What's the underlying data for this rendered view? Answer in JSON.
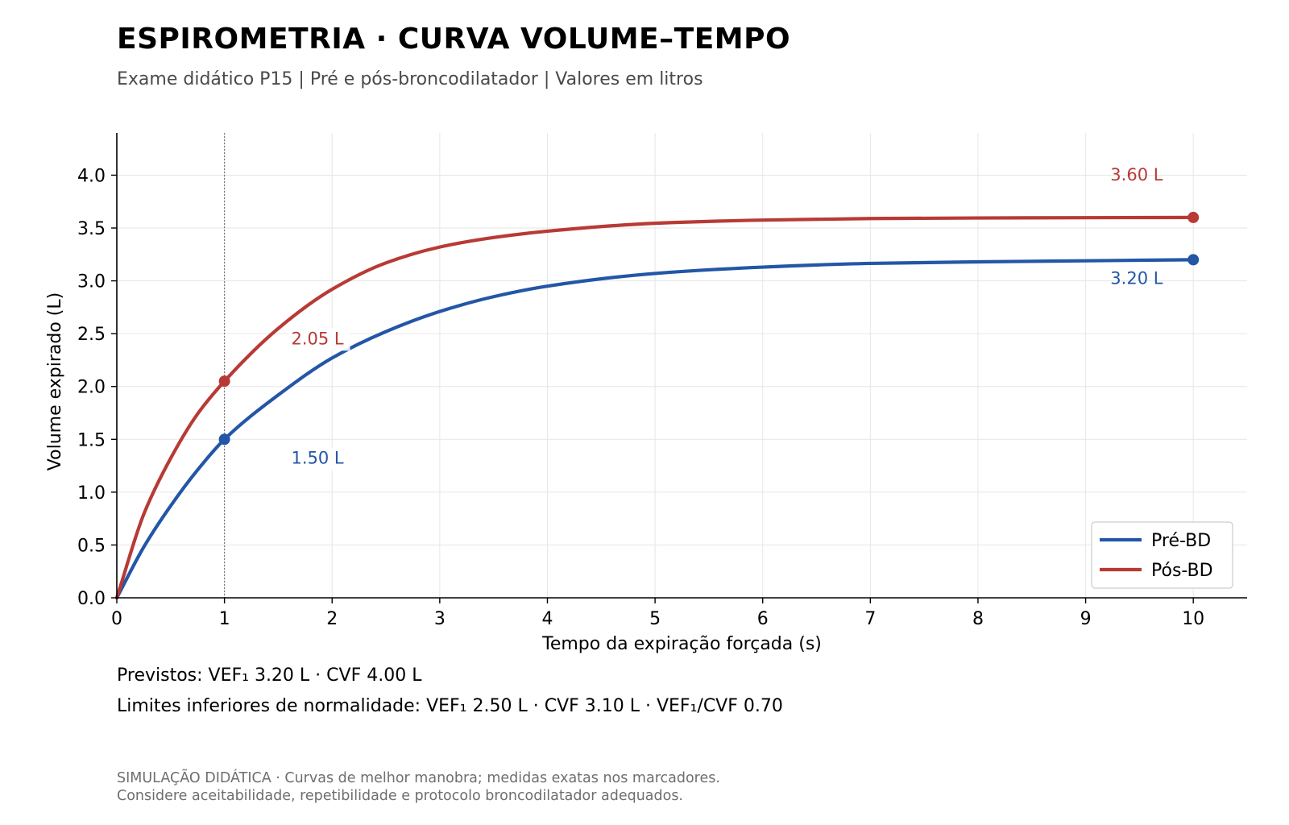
{
  "header": {
    "title": "ESPIROMETRIA · CURVA VOLUME–TEMPO",
    "subtitle": "Exame didático P15  |  Pré e pós-broncodilatador  |  Valores em litros"
  },
  "chart_data": {
    "type": "line",
    "xlabel": "Tempo da expiração forçada (s)",
    "ylabel": "Volume expirado (L)",
    "xlim": [
      0,
      10.5
    ],
    "ylim": [
      0,
      4.4
    ],
    "x_ticks": [
      0,
      1,
      2,
      3,
      4,
      5,
      6,
      7,
      8,
      9,
      10
    ],
    "y_ticks": [
      0.0,
      0.5,
      1.0,
      1.5,
      2.0,
      2.5,
      3.0,
      3.5,
      4.0
    ],
    "y_tick_labels": [
      "0.0",
      "0.5",
      "1.0",
      "1.5",
      "2.0",
      "2.5",
      "3.0",
      "3.5",
      "4.0"
    ],
    "grid": true,
    "legend_position": "lower-right",
    "reference_line_x": 1,
    "x": [
      0,
      0.25,
      0.5,
      0.75,
      1,
      1.5,
      2,
      2.5,
      3,
      3.5,
      4,
      5,
      6,
      7,
      8,
      9,
      10
    ],
    "series": [
      {
        "name": "Pré-BD",
        "color": "#2356a6",
        "values": [
          0.0,
          0.48,
          0.87,
          1.21,
          1.5,
          1.92,
          2.27,
          2.52,
          2.71,
          2.85,
          2.95,
          3.07,
          3.13,
          3.165,
          3.18,
          3.19,
          3.2
        ]
      },
      {
        "name": "Pós-BD",
        "color": "#b83a35",
        "values": [
          0.0,
          0.79,
          1.32,
          1.74,
          2.05,
          2.55,
          2.92,
          3.17,
          3.32,
          3.41,
          3.47,
          3.545,
          3.575,
          3.59,
          3.595,
          3.598,
          3.6
        ]
      }
    ],
    "markers": [
      {
        "series": 0,
        "x": 1,
        "y": 1.5,
        "label": "1.50 L",
        "label_x": 1.62,
        "label_y": 1.27
      },
      {
        "series": 1,
        "x": 1,
        "y": 2.05,
        "label": "2.05 L",
        "label_x": 1.62,
        "label_y": 2.4
      },
      {
        "series": 1,
        "x": 10,
        "y": 3.6,
        "label": "3.60 L",
        "label_x": 9.23,
        "label_y": 3.95
      },
      {
        "series": 0,
        "x": 10,
        "y": 3.2,
        "label": "3.20 L",
        "label_x": 9.23,
        "label_y": 2.97
      }
    ]
  },
  "notes": {
    "predicted": "Previstos: VEF₁ 3.20 L  ·  CVF 4.00 L",
    "lln": "Limites inferiores de normalidade: VEF₁ 2.50 L  ·  CVF 3.10 L  ·  VEF₁/CVF 0.70"
  },
  "footer": {
    "line1": "SIMULAÇÃO DIDÁTICA · Curvas de melhor manobra; medidas exatas nos marcadores.",
    "line2": "Considere aceitabilidade, repetibilidade e protocolo broncodilatador adequados."
  }
}
